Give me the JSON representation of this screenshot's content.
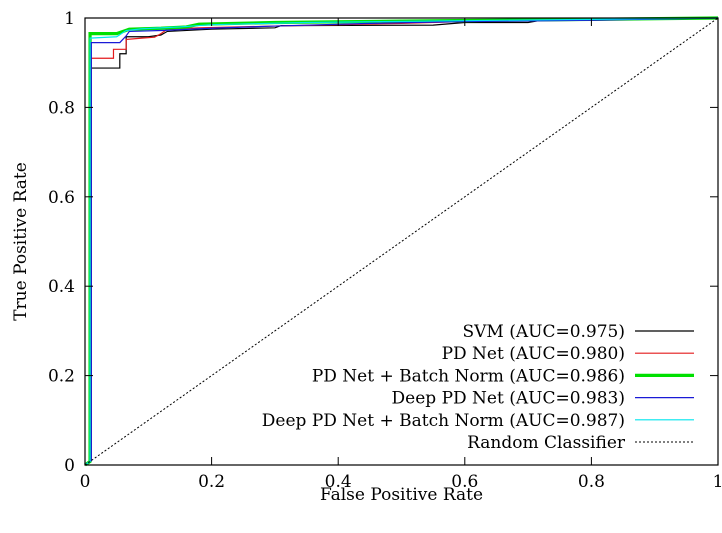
{
  "chart_data": {
    "type": "line",
    "title": "",
    "xlabel": "False Positive Rate",
    "ylabel": "True Positive Rate",
    "xlim": [
      0,
      1
    ],
    "ylim": [
      0,
      1
    ],
    "xticks": [
      0,
      0.2,
      0.4,
      0.6,
      0.8,
      1
    ],
    "yticks": [
      0,
      0.2,
      0.4,
      0.6,
      0.8,
      1
    ],
    "xtick_labels": [
      "0",
      "0.2",
      "0.4",
      "0.6",
      "0.8",
      "1"
    ],
    "ytick_labels": [
      "0",
      "0.2",
      "0.4",
      "0.6",
      "0.8",
      "1"
    ],
    "grid": false,
    "legend_position": "bottom-right",
    "series": [
      {
        "name": "SVM (AUC=0.975)",
        "color": "#000000",
        "width": 1.2,
        "dash": "",
        "points": [
          [
            0,
            0
          ],
          [
            0.01,
            0.01
          ],
          [
            0.01,
            0.888
          ],
          [
            0.055,
            0.888
          ],
          [
            0.055,
            0.92
          ],
          [
            0.065,
            0.92
          ],
          [
            0.065,
            0.958
          ],
          [
            0.1,
            0.958
          ],
          [
            0.12,
            0.962
          ],
          [
            0.13,
            0.97
          ],
          [
            0.2,
            0.975
          ],
          [
            0.3,
            0.978
          ],
          [
            0.31,
            0.983
          ],
          [
            0.55,
            0.984
          ],
          [
            0.6,
            0.99
          ],
          [
            0.7,
            0.99
          ],
          [
            0.72,
            0.995
          ],
          [
            0.85,
            0.996
          ],
          [
            0.92,
            0.998
          ],
          [
            1,
            1
          ]
        ]
      },
      {
        "name": "PD Net (AUC=0.980)",
        "color": "#e41a1c",
        "width": 1.2,
        "dash": "",
        "points": [
          [
            0,
            0
          ],
          [
            0.01,
            0.01
          ],
          [
            0.01,
            0.91
          ],
          [
            0.045,
            0.91
          ],
          [
            0.045,
            0.93
          ],
          [
            0.065,
            0.93
          ],
          [
            0.065,
            0.952
          ],
          [
            0.09,
            0.955
          ],
          [
            0.11,
            0.957
          ],
          [
            0.12,
            0.965
          ],
          [
            0.13,
            0.975
          ],
          [
            0.18,
            0.978
          ],
          [
            0.3,
            0.982
          ],
          [
            0.5,
            0.988
          ],
          [
            0.6,
            0.992
          ],
          [
            0.72,
            0.995
          ],
          [
            0.85,
            0.997
          ],
          [
            1,
            1
          ]
        ]
      },
      {
        "name": "PD Net + Batch Norm (AUC=0.986)",
        "color": "#00e000",
        "width": 3.2,
        "dash": "",
        "points": [
          [
            0,
            0
          ],
          [
            0.008,
            0.008
          ],
          [
            0.008,
            0.965
          ],
          [
            0.05,
            0.965
          ],
          [
            0.07,
            0.975
          ],
          [
            0.12,
            0.977
          ],
          [
            0.16,
            0.98
          ],
          [
            0.18,
            0.986
          ],
          [
            0.3,
            0.99
          ],
          [
            0.5,
            0.993
          ],
          [
            0.65,
            0.995
          ],
          [
            0.8,
            0.997
          ],
          [
            1,
            1
          ]
        ]
      },
      {
        "name": "Deep PD Net (AUC=0.983)",
        "color": "#1a1ad6",
        "width": 1.2,
        "dash": "",
        "points": [
          [
            0,
            0
          ],
          [
            0.01,
            0.01
          ],
          [
            0.01,
            0.945
          ],
          [
            0.055,
            0.945
          ],
          [
            0.065,
            0.96
          ],
          [
            0.07,
            0.97
          ],
          [
            0.12,
            0.972
          ],
          [
            0.2,
            0.977
          ],
          [
            0.3,
            0.982
          ],
          [
            0.45,
            0.988
          ],
          [
            0.6,
            0.992
          ],
          [
            0.8,
            0.995
          ],
          [
            1,
            1
          ]
        ]
      },
      {
        "name": "Deep PD Net + Batch Norm (AUC=0.987)",
        "color": "#00e5ee",
        "width": 1.2,
        "dash": "",
        "points": [
          [
            0,
            0
          ],
          [
            0.008,
            0.008
          ],
          [
            0.008,
            0.955
          ],
          [
            0.05,
            0.958
          ],
          [
            0.065,
            0.972
          ],
          [
            0.09,
            0.976
          ],
          [
            0.15,
            0.98
          ],
          [
            0.2,
            0.985
          ],
          [
            0.35,
            0.99
          ],
          [
            0.6,
            0.994
          ],
          [
            0.8,
            0.997
          ],
          [
            1,
            1
          ]
        ]
      },
      {
        "name": "Random Classifier",
        "color": "#000000",
        "width": 1,
        "dash": "2,2",
        "points": [
          [
            0,
            0
          ],
          [
            1,
            1
          ]
        ]
      }
    ]
  }
}
